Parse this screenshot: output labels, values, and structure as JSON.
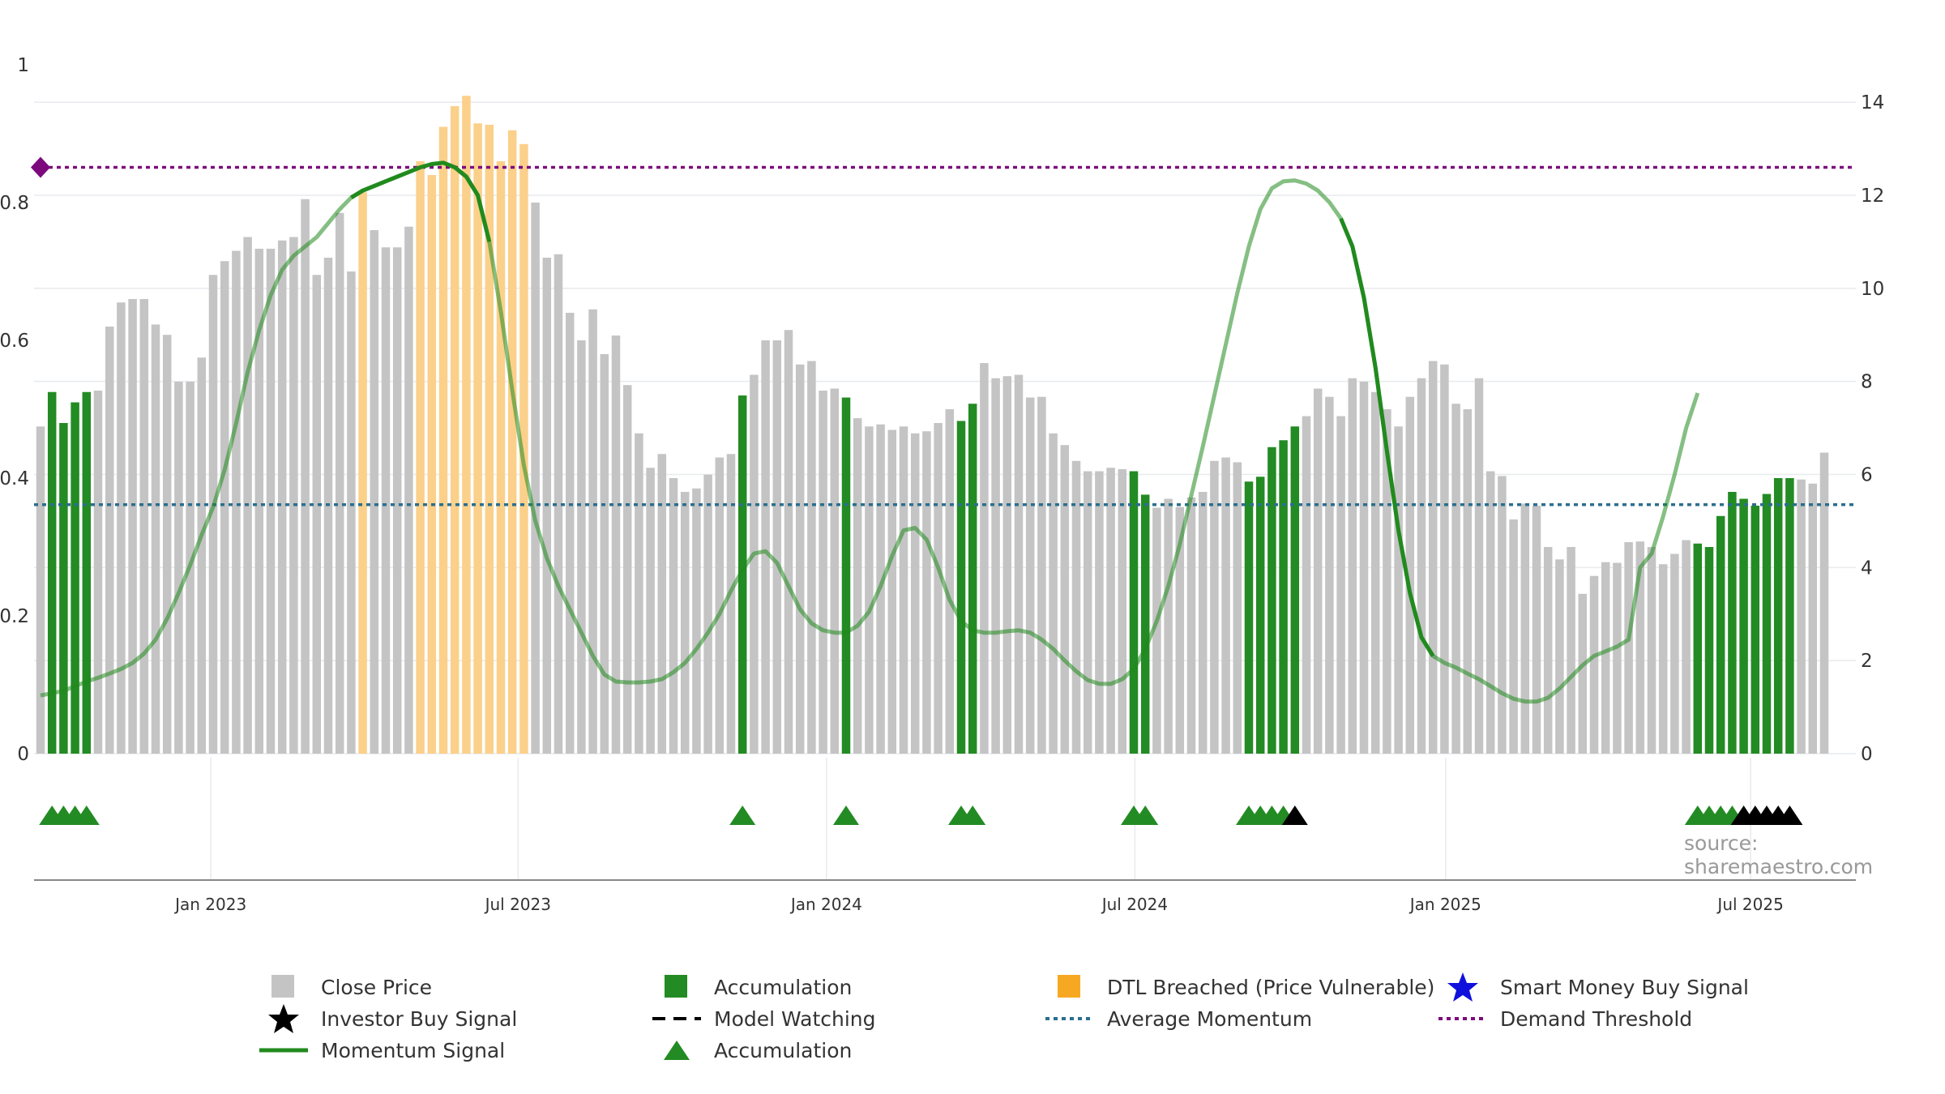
{
  "source_note": "source: sharemaestro.com",
  "colors": {
    "close_price": "#c4c4c4",
    "accumulation": "#238b23",
    "dtl": "#fbd08a",
    "dtl_legend": "#f7a823",
    "momentum": "#218a1e",
    "average_momentum": "#2a6f8f",
    "demand_threshold": "#7d0a7d",
    "investor_buy": "#000000",
    "smart_money": "#1010dd",
    "grid": "#e8eaee"
  },
  "legend": [
    {
      "label": "Close Price",
      "icon": "gray-square-icon"
    },
    {
      "label": "Accumulation",
      "icon": "green-square-icon"
    },
    {
      "label": "DTL Breached (Price Vulnerable)",
      "icon": "orange-square-icon"
    },
    {
      "label": "Smart Money Buy Signal",
      "icon": "blue-star-icon"
    },
    {
      "label": "Investor Buy Signal",
      "icon": "black-star-icon"
    },
    {
      "label": "Model Watching",
      "icon": "black-dash-line-icon"
    },
    {
      "label": "Average Momentum",
      "icon": "blue-dotted-line-icon"
    },
    {
      "label": "Demand Threshold",
      "icon": "purple-dotted-line-icon"
    },
    {
      "label": "Momentum Signal",
      "icon": "green-line-icon"
    },
    {
      "label": "Accumulation",
      "icon": "green-triangle-icon"
    }
  ],
  "chart_data": {
    "type": "bar",
    "x_tick_labels": [
      "Jan 2023",
      "Jul 2023",
      "Jan 2024",
      "Jul 2024",
      "Jan 2025",
      "Jul 2025"
    ],
    "left_axis": {
      "ticks": [
        0,
        0.2,
        0.4,
        0.6,
        0.8,
        1
      ],
      "tick_labels": [
        "0",
        "0.2",
        "0.4",
        "0.6",
        "0.8",
        "1"
      ],
      "range": [
        0,
        1
      ]
    },
    "right_axis": {
      "ticks": [
        0,
        2,
        4,
        6,
        8,
        10,
        12,
        14
      ],
      "tick_labels": [
        "0",
        "2",
        "4",
        "6",
        "8",
        "10",
        "12",
        "14"
      ],
      "range": [
        0,
        15.5
      ]
    },
    "close_price_weekly": [
      0.475,
      0.525,
      0.48,
      0.51,
      0.525,
      0.527,
      0.62,
      0.655,
      0.66,
      0.66,
      0.623,
      0.608,
      0.54,
      0.54,
      0.575,
      0.695,
      0.715,
      0.73,
      0.75,
      0.733,
      0.733,
      0.745,
      0.75,
      0.805,
      0.695,
      0.72,
      0.785,
      0.7,
      0.815,
      0.76,
      0.735,
      0.735,
      0.765,
      0.86,
      0.84,
      0.91,
      0.94,
      0.955,
      0.915,
      0.913,
      0.86,
      0.905,
      0.885,
      0.8,
      0.72,
      0.725,
      0.64,
      0.6,
      0.645,
      0.58,
      0.607,
      0.535,
      0.465,
      0.415,
      0.435,
      0.4,
      0.38,
      0.385,
      0.405,
      0.43,
      0.435,
      0.52,
      0.55,
      0.6,
      0.6,
      0.615,
      0.565,
      0.57,
      0.527,
      0.53,
      0.517,
      0.487,
      0.475,
      0.478,
      0.47,
      0.475,
      0.465,
      0.468,
      0.48,
      0.5,
      0.483,
      0.508,
      0.567,
      0.545,
      0.548,
      0.55,
      0.517,
      0.518,
      0.465,
      0.448,
      0.425,
      0.41,
      0.41,
      0.415,
      0.413,
      0.41,
      0.376,
      0.357,
      0.37,
      0.358,
      0.372,
      0.38,
      0.425,
      0.43,
      0.423,
      0.395,
      0.402,
      0.445,
      0.455,
      0.475,
      0.49,
      0.53,
      0.518,
      0.49,
      0.545,
      0.54,
      0.525,
      0.5,
      0.475,
      0.518,
      0.545,
      0.57,
      0.565,
      0.508,
      0.5,
      0.545,
      0.41,
      0.403,
      0.34,
      0.363,
      0.36,
      0.3,
      0.282,
      0.3,
      0.232,
      0.258,
      0.278,
      0.277,
      0.307,
      0.308,
      0.3,
      0.275,
      0.29,
      0.31,
      0.305,
      0.3,
      0.345,
      0.38,
      0.37,
      0.36,
      0.377,
      0.4,
      0.4,
      0.398,
      0.392,
      0.437
    ],
    "accumulation_weeks": [
      1,
      2,
      3,
      4,
      61,
      70,
      80,
      81,
      95,
      96,
      105,
      106,
      107,
      108,
      109,
      144,
      145,
      146,
      147,
      148,
      149,
      150,
      151,
      152
    ],
    "dtl_breached_weeks": [
      28,
      33,
      34,
      35,
      36,
      37,
      38,
      39,
      40,
      41,
      42
    ],
    "momentum_signal_weekly": [
      1.25,
      1.3,
      1.35,
      1.45,
      1.55,
      1.63,
      1.72,
      1.82,
      1.95,
      2.15,
      2.45,
      2.9,
      3.45,
      4.05,
      4.7,
      5.3,
      6.1,
      7.1,
      8.2,
      9.1,
      9.85,
      10.4,
      10.7,
      10.9,
      11.1,
      11.4,
      11.7,
      11.95,
      12.1,
      12.2,
      12.3,
      12.4,
      12.5,
      12.6,
      12.67,
      12.7,
      12.6,
      12.4,
      12.0,
      11.0,
      9.5,
      7.8,
      6.2,
      5.0,
      4.2,
      3.6,
      3.1,
      2.6,
      2.1,
      1.7,
      1.55,
      1.53,
      1.53,
      1.55,
      1.6,
      1.75,
      1.95,
      2.25,
      2.6,
      3.0,
      3.5,
      3.95,
      4.3,
      4.35,
      4.1,
      3.6,
      3.1,
      2.8,
      2.65,
      2.6,
      2.6,
      2.75,
      3.05,
      3.6,
      4.25,
      4.8,
      4.85,
      4.6,
      4.0,
      3.3,
      2.85,
      2.65,
      2.6,
      2.6,
      2.63,
      2.65,
      2.6,
      2.45,
      2.25,
      2.0,
      1.77,
      1.58,
      1.5,
      1.5,
      1.6,
      1.82,
      2.25,
      2.85,
      3.6,
      4.5,
      5.55,
      6.6,
      7.7,
      8.8,
      9.9,
      10.9,
      11.7,
      12.15,
      12.3,
      12.32,
      12.25,
      12.1,
      11.85,
      11.5,
      10.9,
      9.8,
      8.3,
      6.5,
      4.8,
      3.45,
      2.5,
      2.1,
      1.95,
      1.85,
      1.72,
      1.6,
      1.45,
      1.3,
      1.18,
      1.12,
      1.12,
      1.2,
      1.4,
      1.65,
      1.9,
      2.1,
      2.2,
      2.3,
      2.45,
      4.0,
      4.3,
      5.1,
      6.0,
      7.0,
      7.75
    ],
    "momentum_emphasized_weeks": [
      [
        27,
        39
      ],
      [
        113,
        121
      ],
      [
        151,
        158
      ]
    ],
    "average_momentum": 5.35,
    "demand_threshold": 12.6,
    "accumulation_triangles_weeks": [
      1,
      2,
      3,
      4,
      61,
      70,
      80,
      81,
      95,
      96,
      105,
      106,
      107,
      108,
      144,
      145,
      146,
      147
    ],
    "investor_buy_weeks": [
      109,
      148,
      149,
      150,
      151,
      152
    ],
    "smart_money_buy_weeks": [],
    "grid": true,
    "legend_position": "bottom"
  }
}
